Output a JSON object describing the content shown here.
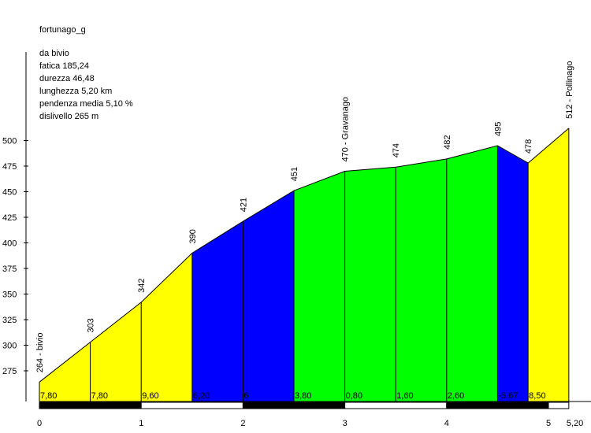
{
  "chart_data": {
    "type": "area",
    "title": "fortunago_g",
    "stats": [
      "da bivio",
      "fatica 185,24",
      "durezza 46,48",
      "lunghezza 5,20 km",
      "pendenza media 5,10 %",
      "dislivello 265 m"
    ],
    "x_ticks": [
      "0",
      "1",
      "2",
      "3",
      "4",
      "5"
    ],
    "x_end_label": "5,20",
    "y_ticks": [
      275,
      300,
      325,
      350,
      375,
      400,
      425,
      450,
      475,
      500
    ],
    "xlim": [
      0,
      5.2
    ],
    "ylim": [
      264,
      512
    ],
    "points": [
      {
        "x": 0,
        "alt": 264,
        "label": "264 - bivio"
      },
      {
        "x": 0.5,
        "alt": 303,
        "label": "303"
      },
      {
        "x": 1.0,
        "alt": 342,
        "label": "342"
      },
      {
        "x": 1.5,
        "alt": 390,
        "label": "390"
      },
      {
        "x": 2.0,
        "alt": 421,
        "label": "421"
      },
      {
        "x": 2.5,
        "alt": 451,
        "label": "451"
      },
      {
        "x": 3.0,
        "alt": 470,
        "label": "470 - Gravanago"
      },
      {
        "x": 3.5,
        "alt": 474,
        "label": "474"
      },
      {
        "x": 4.0,
        "alt": 482,
        "label": "482"
      },
      {
        "x": 4.5,
        "alt": 495,
        "label": "495"
      },
      {
        "x": 4.8,
        "alt": 478,
        "label": "478"
      },
      {
        "x": 5.2,
        "alt": 512,
        "label": "512 - Pollinago"
      }
    ],
    "segments": [
      {
        "from": 0,
        "to": 0.5,
        "grade": "7,80",
        "color": "#ffff00"
      },
      {
        "from": 0.5,
        "to": 1.0,
        "grade": "7,80",
        "color": "#ffff00"
      },
      {
        "from": 1.0,
        "to": 1.5,
        "grade": "9,60",
        "color": "#ffff00"
      },
      {
        "from": 1.5,
        "to": 2.0,
        "grade": "6,20",
        "color": "#0000ff"
      },
      {
        "from": 2.0,
        "to": 2.5,
        "grade": "6",
        "color": "#0000ff"
      },
      {
        "from": 2.5,
        "to": 3.0,
        "grade": "3,80",
        "color": "#00ff00"
      },
      {
        "from": 3.0,
        "to": 3.5,
        "grade": "0,80",
        "color": "#00ff00"
      },
      {
        "from": 3.5,
        "to": 4.0,
        "grade": "1,60",
        "color": "#00ff00"
      },
      {
        "from": 4.0,
        "to": 4.5,
        "grade": "2,60",
        "color": "#00ff00"
      },
      {
        "from": 4.5,
        "to": 4.8,
        "grade": "-5,67",
        "color": "#0000ff"
      },
      {
        "from": 4.8,
        "to": 5.2,
        "grade": "8,50",
        "color": "#ffff00"
      }
    ],
    "km_bar_colors": [
      "#000000",
      "#ffffff"
    ],
    "grid": false,
    "legend": "none"
  }
}
